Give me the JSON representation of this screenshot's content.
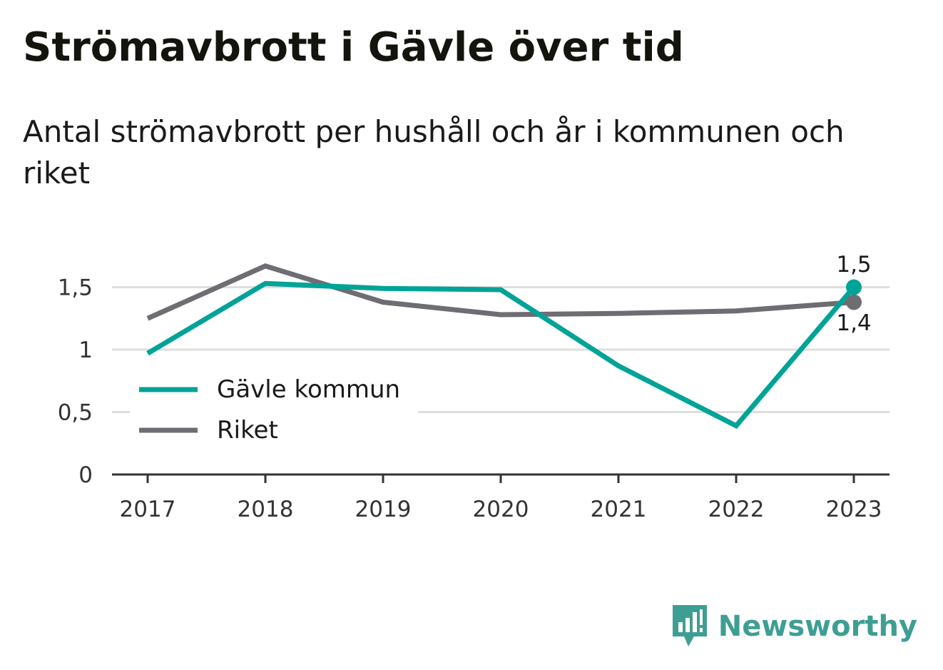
{
  "header": {
    "title": "Strömavbrott i Gävle över tid",
    "subtitle": "Antal strömavbrott per hushåll och år i kommunen och riket"
  },
  "brand": {
    "name": "Newsworthy",
    "icon": "newsworthy-logo-icon",
    "color": "#3f9e93"
  },
  "chart_data": {
    "type": "line",
    "categories": [
      "2017",
      "2018",
      "2019",
      "2020",
      "2021",
      "2022",
      "2023"
    ],
    "y_ticks": [
      "0",
      "0,5",
      "1",
      "1,5"
    ],
    "y_tick_values": [
      0,
      0.5,
      1,
      1.5
    ],
    "ylim": [
      0,
      1.5
    ],
    "grid": true,
    "legend_position": "left",
    "series": [
      {
        "name": "Gävle kommun",
        "color": "#00a397",
        "values": [
          0.97,
          1.53,
          1.49,
          1.48,
          0.87,
          0.39,
          1.5
        ],
        "end_label": "1,5"
      },
      {
        "name": "Riket",
        "color": "#6e6d73",
        "values": [
          1.25,
          1.67,
          1.38,
          1.28,
          1.29,
          1.31,
          1.38
        ],
        "end_label": "1,4"
      }
    ]
  }
}
